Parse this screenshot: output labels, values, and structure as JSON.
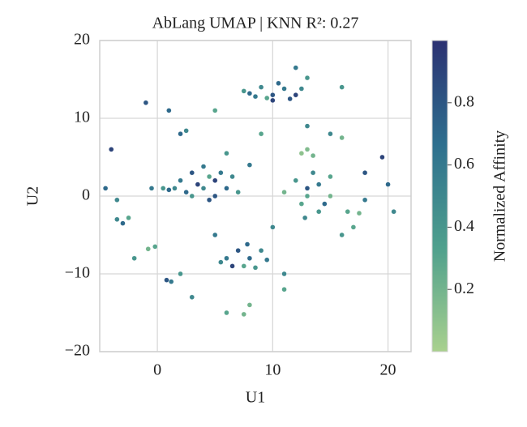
{
  "chart_data": {
    "type": "scatter",
    "title": "AbLang UMAP | KNN R²: 0.27",
    "xlabel": "U1",
    "ylabel": "U2",
    "colorbar_label": "Normalized Affinity",
    "colormap": [
      "#a9d18e",
      "#4fa08d",
      "#2e6f8e",
      "#2c3172"
    ],
    "clim": [
      0,
      1
    ],
    "cticks": [
      0.2,
      0.4,
      0.6,
      0.8
    ],
    "xlim": [
      -5,
      22
    ],
    "ylim": [
      -20,
      20
    ],
    "xticks": [
      0,
      10,
      20
    ],
    "yticks": [
      {
        "value": -20,
        "label": "−20"
      },
      {
        "value": -10,
        "label": "−10"
      },
      0,
      10,
      20
    ],
    "grid": true,
    "x": [
      8,
      9,
      10,
      11,
      12,
      9.5,
      10.5,
      7.5,
      11.5,
      8.5,
      12.5,
      13,
      12,
      10,
      2,
      3,
      4,
      5,
      6,
      3,
      4.5,
      5.5,
      3.5,
      4.5,
      2.5,
      6.5,
      5,
      4,
      1.5,
      7,
      12,
      13,
      14,
      15,
      13.5,
      12.5,
      14.5,
      15,
      11,
      13,
      14,
      12.5,
      13.5,
      13,
      6,
      7,
      8,
      9,
      7.5,
      6.5,
      8.5,
      7.8,
      5.5,
      9.5,
      -3.5,
      -2.5,
      -3,
      -0.8,
      -0.2,
      -0.5,
      0.5,
      1,
      2,
      2.5,
      16.5,
      17.5,
      0.8,
      1.2,
      12.8,
      -1,
      1,
      -4,
      5,
      15,
      16,
      18,
      20,
      19.5,
      18,
      16,
      20.5,
      -2,
      3,
      11,
      5,
      10,
      16,
      8,
      6,
      -4.5,
      8,
      2,
      13,
      9,
      11,
      6,
      -3.5,
      17,
      7.5
    ],
    "y": [
      13.2,
      14,
      13,
      13.8,
      13,
      12.6,
      14.5,
      13.5,
      12.5,
      12.8,
      13.8,
      15.2,
      16.5,
      12.3,
      2,
      3,
      1,
      2,
      1,
      0,
      -0.5,
      3,
      1.5,
      2.5,
      0.5,
      2.5,
      0,
      3.8,
      1,
      0.5,
      2,
      0,
      1.5,
      0,
      3,
      -1,
      -1,
      2.5,
      0.5,
      1,
      -2,
      5.5,
      5.2,
      6,
      -8,
      -7,
      -8,
      -7,
      -9,
      -9,
      -9.2,
      -6.2,
      -8.5,
      -8.2,
      -3,
      -2.8,
      -3.5,
      -6.8,
      -6.5,
      1,
      1,
      0.8,
      8,
      8.4,
      -2,
      -2.2,
      -10.8,
      -11,
      -2.8,
      12,
      11,
      6,
      11,
      8,
      14,
      3,
      1.5,
      5,
      -0.5,
      -5,
      -2,
      -8,
      -13,
      -12,
      -5,
      -4,
      7.5,
      4,
      5.5,
      1,
      -14,
      -10,
      9,
      8,
      -10,
      -15,
      -0.5,
      -4,
      -15.2
    ],
    "values": [
      0.7,
      0.5,
      0.8,
      0.6,
      0.9,
      0.3,
      0.7,
      0.4,
      0.8,
      0.6,
      0.5,
      0.4,
      0.6,
      0.9,
      0.6,
      0.8,
      0.5,
      0.9,
      0.7,
      0.4,
      0.8,
      0.6,
      0.9,
      0.3,
      0.7,
      0.5,
      0.8,
      0.6,
      0.5,
      0.4,
      0.4,
      0.3,
      0.6,
      0.2,
      0.5,
      0.3,
      0.7,
      0.3,
      0.2,
      0.8,
      0.4,
      0.1,
      0.2,
      0.15,
      0.6,
      0.8,
      0.7,
      0.5,
      0.3,
      0.9,
      0.4,
      0.7,
      0.5,
      0.6,
      0.5,
      0.3,
      0.7,
      0.2,
      0.3,
      0.6,
      0.4,
      0.7,
      0.7,
      0.5,
      0.3,
      0.2,
      0.8,
      0.6,
      0.5,
      0.8,
      0.7,
      0.9,
      0.3,
      0.5,
      0.4,
      0.8,
      0.7,
      0.9,
      0.6,
      0.4,
      0.5,
      0.4,
      0.5,
      0.3,
      0.6,
      0.5,
      0.2,
      0.6,
      0.4,
      0.7,
      0.2,
      0.4,
      0.5,
      0.3,
      0.5,
      0.3,
      0.5,
      0.3,
      0.2
    ]
  }
}
